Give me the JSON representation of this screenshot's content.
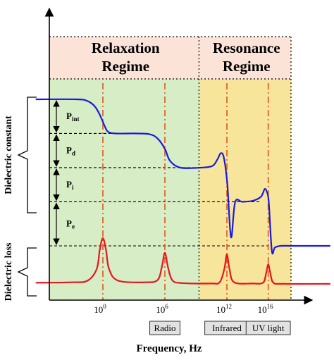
{
  "chart_data": {
    "type": "line",
    "title": "",
    "xlabel": "Frequency, Hz",
    "ylabels": [
      "Dielectric constant",
      "Dielectric loss"
    ],
    "x_ticks": [
      {
        "base": "10",
        "exp": "0",
        "x": 0
      },
      {
        "base": "10",
        "exp": "6",
        "x": 6
      },
      {
        "base": "10",
        "exp": "12",
        "x": 12
      },
      {
        "base": "10",
        "exp": "16",
        "x": 16
      }
    ],
    "regimes": [
      {
        "line1": "Relaxation",
        "line2": "Regime",
        "x_range": [
          -6.5,
          9.3
        ],
        "color": "#d6edc6"
      },
      {
        "line1": "Resonance",
        "line2": "Regime",
        "x_range": [
          9.3,
          22.0
        ],
        "color": "#f8e59c"
      }
    ],
    "header_color": "#fbe3d8",
    "polarizations": [
      {
        "label": "P",
        "sub": "int"
      },
      {
        "label": "P",
        "sub": "d"
      },
      {
        "label": "P",
        "sub": "i"
      },
      {
        "label": "P",
        "sub": "e"
      }
    ],
    "bands": [
      {
        "label": "Radio",
        "x": 6
      },
      {
        "label": "Infrared",
        "x": 12
      },
      {
        "label": "UV light",
        "x": 16
      }
    ],
    "levels": [
      4.3,
      3.3,
      2.3,
      1.3,
      1.0
    ],
    "series": [
      {
        "color": "#1a1adf",
        "x": [
          -6.5,
          -2.5,
          -1.5,
          -0.8,
          -0.3,
          0.2,
          0.5,
          1.2,
          3.0,
          4.5,
          5.3,
          6.0,
          6.5,
          7.5,
          9.5,
          10.6,
          11.1,
          11.4,
          11.7,
          12.05,
          12.4,
          12.8,
          13.5,
          14.5,
          15.3,
          15.65,
          15.85,
          16.05,
          16.35,
          16.65,
          17.2,
          18.5,
          22.0
        ],
        "y": [
          4.3,
          4.3,
          4.25,
          4.1,
          3.85,
          3.5,
          3.35,
          3.3,
          3.3,
          3.28,
          3.15,
          2.85,
          2.5,
          2.3,
          2.3,
          2.35,
          2.55,
          2.72,
          2.6,
          1.8,
          1.22,
          1.29,
          1.3,
          1.33,
          1.45,
          1.67,
          1.6,
          1.3,
          0.87,
          0.96,
          1.0,
          1.0,
          1.0
        ]
      },
      {
        "color": "#e8141e",
        "x": [
          -6.5,
          -3.0,
          -1.5,
          -0.6,
          -0.3,
          0,
          0.3,
          0.6,
          1.5,
          4.2,
          5.3,
          5.7,
          6.0,
          6.3,
          6.7,
          7.6,
          10.5,
          11.3,
          11.75,
          12.0,
          12.25,
          12.7,
          14.5,
          15.5,
          15.8,
          16.0,
          16.2,
          16.5,
          17.5,
          22.0
        ],
        "y": [
          0.05,
          0.06,
          0.1,
          0.4,
          0.9,
          1.2,
          0.9,
          0.4,
          0.1,
          0.06,
          0.12,
          0.45,
          0.82,
          0.45,
          0.12,
          0.04,
          0.03,
          0.06,
          0.4,
          0.78,
          0.4,
          0.06,
          0.03,
          0.05,
          0.3,
          0.52,
          0.3,
          0.05,
          0.02,
          0.02
        ]
      }
    ]
  }
}
